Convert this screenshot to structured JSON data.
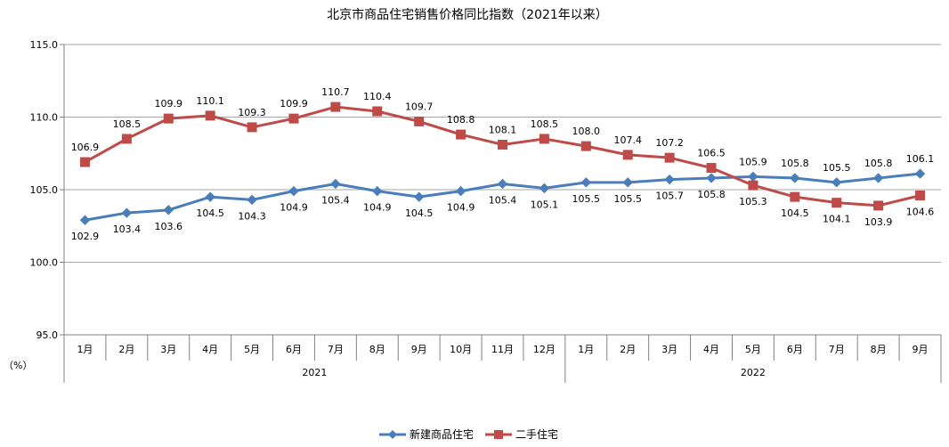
{
  "chart_data": {
    "type": "line",
    "title": "北京市商品住宅销售价格同比指数（2021年以来）",
    "unit_label": "（%）",
    "y_ticks": [
      "115.0",
      "110.0",
      "105.0",
      "100.0",
      "95.0"
    ],
    "ylim": [
      95,
      115
    ],
    "grid": true,
    "legend_position": "bottom-center",
    "categories": [
      "1月",
      "2月",
      "3月",
      "4月",
      "5月",
      "6月",
      "7月",
      "8月",
      "9月",
      "10月",
      "11月",
      "12月",
      "1月",
      "2月",
      "3月",
      "4月",
      "5月",
      "6月",
      "7月",
      "8月",
      "9月"
    ],
    "year_groups": [
      {
        "label": "2021",
        "start": 0,
        "count": 12
      },
      {
        "label": "2022",
        "start": 12,
        "count": 9
      }
    ],
    "series": [
      {
        "name": "新建商品住宅",
        "color": "#4a7ebb",
        "marker": "diamond",
        "values": [
          102.9,
          103.4,
          103.6,
          104.5,
          104.3,
          104.9,
          105.4,
          104.9,
          104.5,
          104.9,
          105.4,
          105.1,
          105.5,
          105.5,
          105.7,
          105.8,
          105.9,
          105.8,
          105.5,
          105.8,
          106.1
        ],
        "labels": [
          "102.9",
          "103.4",
          "103.6",
          "104.5",
          "104.3",
          "104.9",
          "105.4",
          "104.9",
          "104.5",
          "104.9",
          "105.4",
          "105.1",
          "105.5",
          "105.5",
          "105.7",
          "105.8",
          "105.9",
          "105.8",
          "105.5",
          "105.8",
          "106.1"
        ],
        "label_side": [
          "below",
          "below",
          "below",
          "below",
          "below",
          "below",
          "below",
          "below",
          "below",
          "below",
          "below",
          "below",
          "below",
          "below",
          "below",
          "below",
          "above",
          "above",
          "above",
          "above",
          "above"
        ]
      },
      {
        "name": "二手住宅",
        "color": "#be4b48",
        "marker": "square",
        "values": [
          106.9,
          108.5,
          109.9,
          110.1,
          109.3,
          109.9,
          110.7,
          110.4,
          109.7,
          108.8,
          108.1,
          108.5,
          108.0,
          107.4,
          107.2,
          106.5,
          105.3,
          104.5,
          104.1,
          103.9,
          104.6
        ],
        "labels": [
          "106.9",
          "108.5",
          "109.9",
          "110.1",
          "109.3",
          "109.9",
          "110.7",
          "110.4",
          "109.7",
          "108.8",
          "108.1",
          "108.5",
          "108.0",
          "107.4",
          "107.2",
          "106.5",
          "105.3",
          "104.5",
          "104.1",
          "103.9",
          "104.6"
        ],
        "label_side": [
          "above",
          "above",
          "above",
          "above",
          "above",
          "above",
          "above",
          "above",
          "above",
          "above",
          "above",
          "above",
          "above",
          "above",
          "above",
          "above",
          "below",
          "below",
          "below",
          "below",
          "below"
        ]
      }
    ]
  }
}
